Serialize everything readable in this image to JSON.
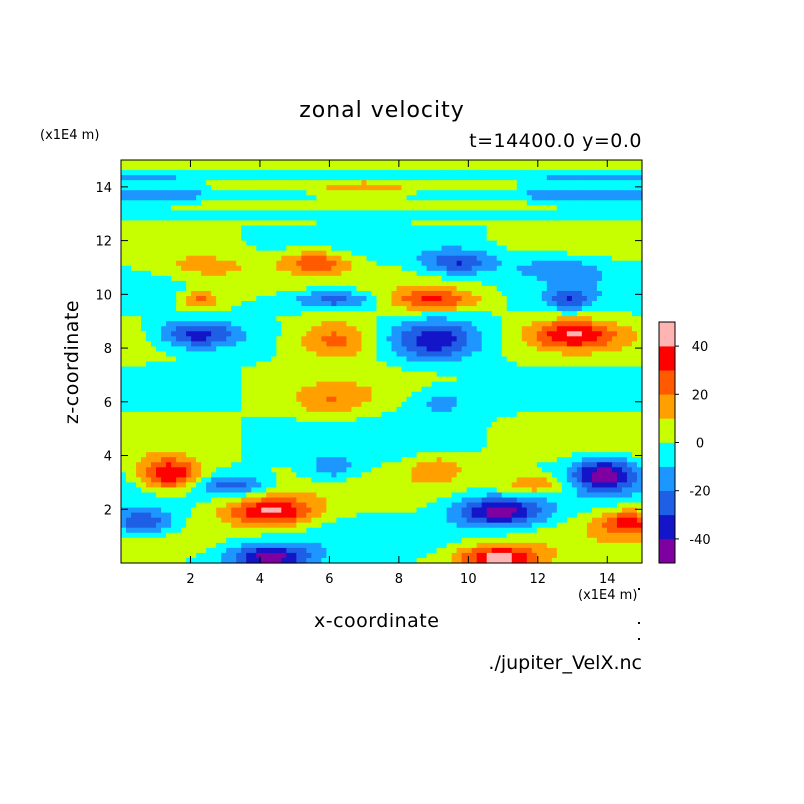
{
  "chart_data": {
    "type": "heatmap",
    "title": "zonal velocity",
    "subtitle": "t=14400.0 y=0.0",
    "xlabel": "x-coordinate",
    "ylabel": "z-coordinate",
    "x_unit_label": "(x1E4 m)",
    "y_unit_label": "(x1E4 m)",
    "source_label": "./jupiter_VelX.nc",
    "xlim": [
      0,
      15
    ],
    "ylim": [
      0,
      15
    ],
    "x_ticks": [
      "2",
      "4",
      "6",
      "8",
      "10",
      "12",
      "14"
    ],
    "y_ticks": [
      "2",
      "4",
      "6",
      "8",
      "10",
      "12",
      "14"
    ],
    "colorbar": {
      "levels": [
        -50,
        -40,
        -30,
        -20,
        -10,
        0,
        10,
        20,
        30,
        40,
        50
      ],
      "colors": [
        "#7f00a0",
        "#1414c8",
        "#1e5fe6",
        "#1e96ff",
        "#00ffff",
        "#c8ff00",
        "#ffa000",
        "#ff5a00",
        "#ff0000",
        "#ffb4b4"
      ],
      "tick_labels": [
        "-40",
        "-20",
        "0",
        "20",
        "40"
      ]
    },
    "features": [
      {
        "x": 4.3,
        "z": 1.9,
        "value": 42,
        "sx": 1.3,
        "sz": 0.55
      },
      {
        "x": 10.9,
        "z": 1.9,
        "value": -45,
        "sx": 1.3,
        "sz": 0.55
      },
      {
        "x": 4.3,
        "z": 0.2,
        "value": -45,
        "sx": 1.2,
        "sz": 0.45
      },
      {
        "x": 10.9,
        "z": 0.2,
        "value": 45,
        "sx": 1.2,
        "sz": 0.45
      },
      {
        "x": 1.4,
        "z": 3.3,
        "value": 44,
        "sx": 0.9,
        "sz": 0.6
      },
      {
        "x": 13.9,
        "z": 3.3,
        "value": -44,
        "sx": 0.9,
        "sz": 0.6
      },
      {
        "x": 0.6,
        "z": 1.5,
        "value": -32,
        "sx": 0.9,
        "sz": 0.5
      },
      {
        "x": 14.6,
        "z": 1.5,
        "value": 30,
        "sx": 0.9,
        "sz": 0.5
      },
      {
        "x": 3.2,
        "z": 2.9,
        "value": -25,
        "sx": 1.0,
        "sz": 0.4
      },
      {
        "x": 11.9,
        "z": 2.9,
        "value": 22,
        "sx": 1.0,
        "sz": 0.4
      },
      {
        "x": 6.1,
        "z": 3.5,
        "value": -18,
        "sx": 0.8,
        "sz": 0.5
      },
      {
        "x": 9.1,
        "z": 3.5,
        "value": 18,
        "sx": 0.8,
        "sz": 0.5
      },
      {
        "x": 2.2,
        "z": 8.5,
        "value": -38,
        "sx": 1.2,
        "sz": 0.55
      },
      {
        "x": 13.0,
        "z": 8.5,
        "value": 35,
        "sx": 1.2,
        "sz": 0.55
      },
      {
        "x": 6.2,
        "z": 8.3,
        "value": 30,
        "sx": 1.2,
        "sz": 0.75
      },
      {
        "x": 9.1,
        "z": 8.3,
        "value": -33,
        "sx": 1.2,
        "sz": 0.75
      },
      {
        "x": 5.6,
        "z": 11.2,
        "value": 28,
        "sx": 1.0,
        "sz": 0.45
      },
      {
        "x": 9.7,
        "z": 11.2,
        "value": -30,
        "sx": 1.0,
        "sz": 0.45
      },
      {
        "x": 6.2,
        "z": 9.8,
        "value": -30,
        "sx": 1.3,
        "sz": 0.4
      },
      {
        "x": 9.0,
        "z": 9.8,
        "value": 28,
        "sx": 1.3,
        "sz": 0.4
      },
      {
        "x": 2.3,
        "z": 9.8,
        "value": 25,
        "sx": 0.6,
        "sz": 0.4
      },
      {
        "x": 12.9,
        "z": 9.8,
        "value": -25,
        "sx": 0.6,
        "sz": 0.4
      },
      {
        "x": 6.0,
        "z": 6.0,
        "value": 15,
        "sx": 1.0,
        "sz": 0.6
      },
      {
        "x": 9.2,
        "z": 6.0,
        "value": -15,
        "sx": 1.0,
        "sz": 0.6
      },
      {
        "x": 2.5,
        "z": 11.0,
        "value": 15,
        "sx": 1.5,
        "sz": 0.5
      },
      {
        "x": 12.6,
        "z": 11.0,
        "value": -15,
        "sx": 1.5,
        "sz": 0.5
      }
    ]
  }
}
